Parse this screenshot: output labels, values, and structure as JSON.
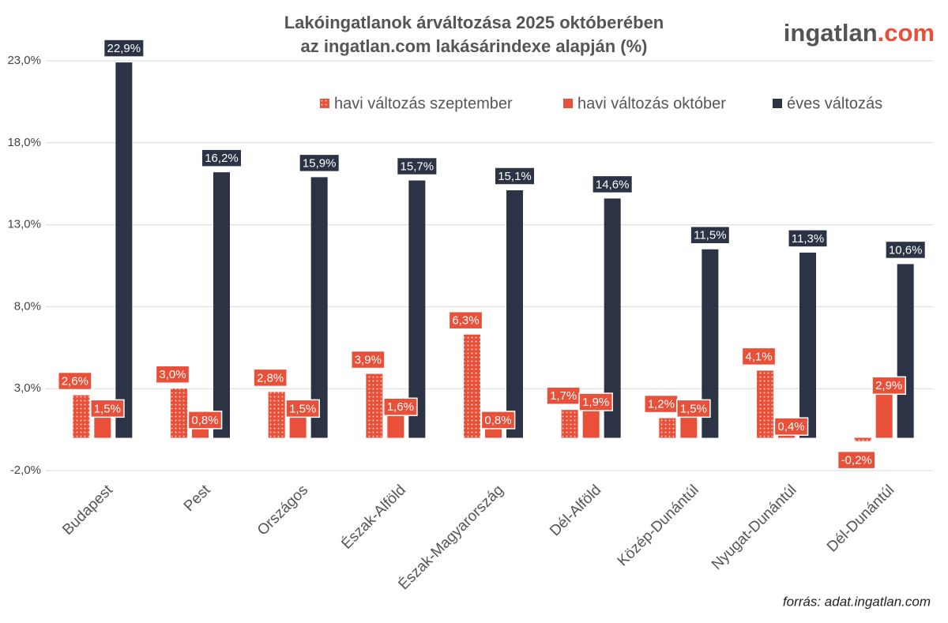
{
  "chart_data": {
    "type": "bar",
    "title": [
      "Lakóingatlanok árváltozása 2025 októberében",
      "az ingatlan.com lakásárindexe alapján (%)"
    ],
    "categories": [
      "Budapest",
      "Pest",
      "Országos",
      "Észak-Alföld",
      "Észak-Magyarország",
      "Dél-Alföld",
      "Közép-Dunántúl",
      "Nyugat-Dunántúl",
      "Dél-Dunántúl"
    ],
    "series": [
      {
        "name": "havi változás szeptember",
        "color": "#e8503a",
        "pattern": "dots",
        "values": [
          2.6,
          3.0,
          2.8,
          3.9,
          6.3,
          1.7,
          1.2,
          4.1,
          -0.2
        ],
        "value_labels": [
          "2,6%",
          "3,0%",
          "2,8%",
          "3,9%",
          "6,3%",
          "1,7%",
          "1,2%",
          "4,1%",
          "-0,2%"
        ]
      },
      {
        "name": "havi változás október",
        "color": "#e8503a",
        "values": [
          1.5,
          0.8,
          1.5,
          1.6,
          0.8,
          1.9,
          1.5,
          0.4,
          2.9
        ],
        "value_labels": [
          "1,5%",
          "0,8%",
          "1,5%",
          "1,6%",
          "0,8%",
          "1,9%",
          "1,5%",
          "0,4%",
          "2,9%"
        ]
      },
      {
        "name": "éves változás",
        "color": "#2b3345",
        "values": [
          22.9,
          16.2,
          15.9,
          15.7,
          15.1,
          14.6,
          11.5,
          11.3,
          10.6
        ],
        "value_labels": [
          "22,9%",
          "16,2%",
          "15,9%",
          "15,7%",
          "15,1%",
          "14,6%",
          "11,5%",
          "11,3%",
          "10,6%"
        ]
      }
    ],
    "ylim": [
      -2,
      23
    ],
    "yticks": [
      {
        "value": -2,
        "label": "-2,0%"
      },
      {
        "value": 3,
        "label": "3,0%"
      },
      {
        "value": 8,
        "label": "8,0%"
      },
      {
        "value": 13,
        "label": "13,0%"
      },
      {
        "value": 18,
        "label": "18,0%"
      },
      {
        "value": 23,
        "label": "23,0%"
      }
    ],
    "grid": true,
    "legend": "top-right"
  },
  "logo": {
    "name": "ingatlan",
    "suffix": ".com"
  },
  "source": "forrás: adat.ingatlan.com"
}
